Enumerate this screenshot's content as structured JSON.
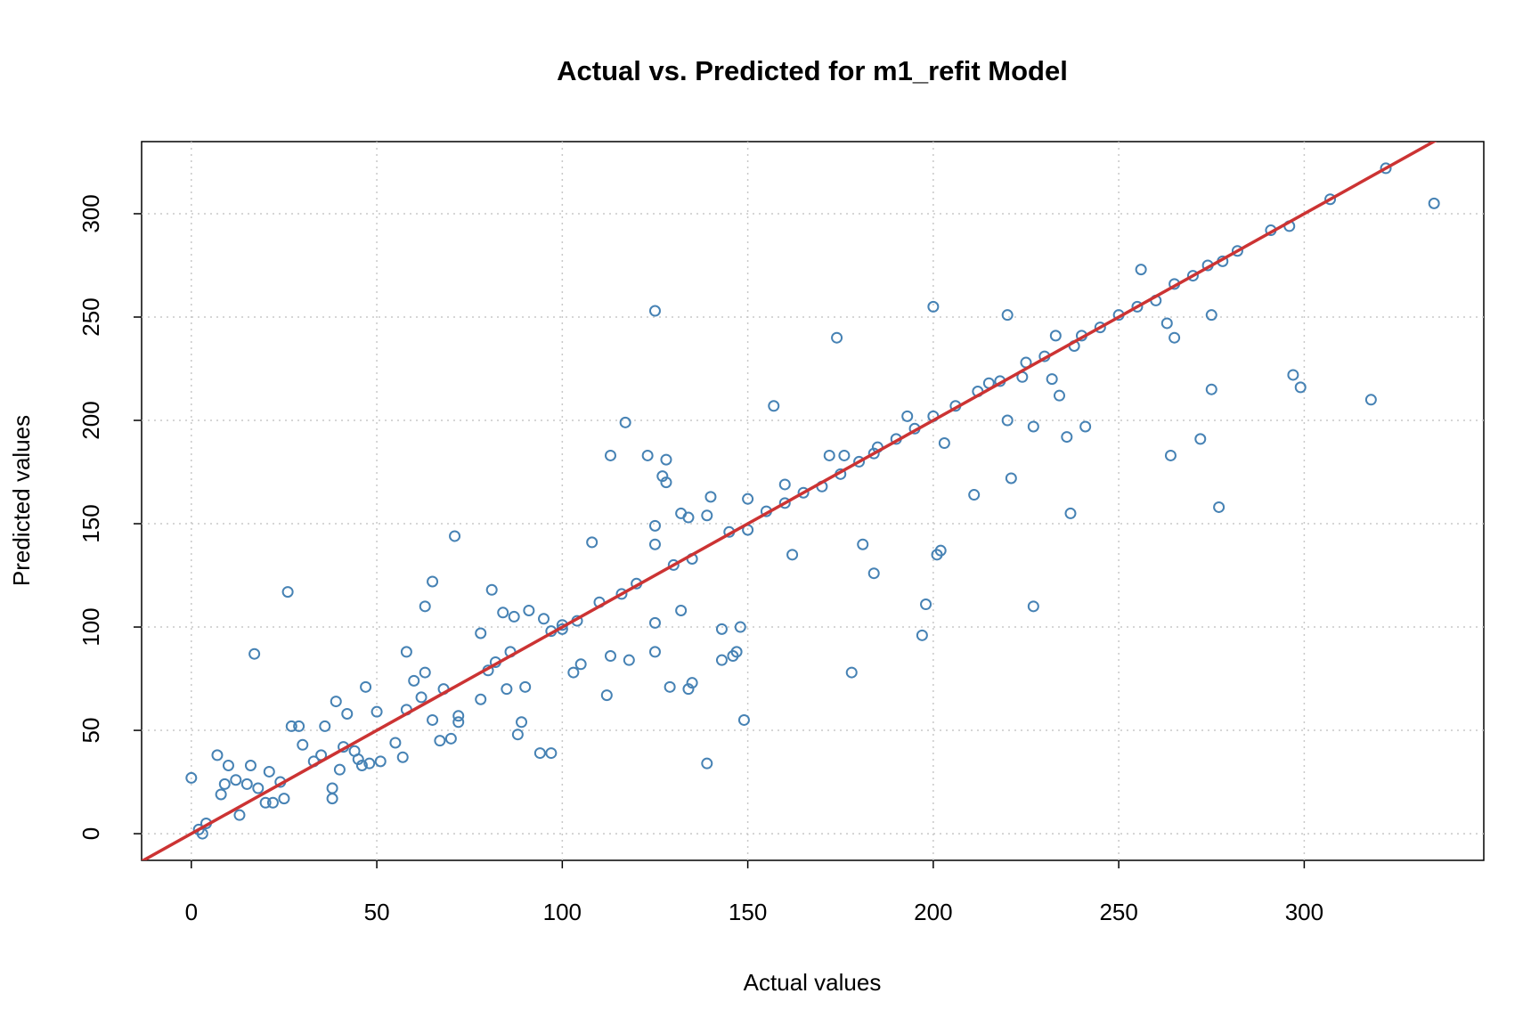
{
  "chart_data": {
    "type": "scatter",
    "title": "Actual vs. Predicted for m1_refit Model",
    "xlabel": "Actual values",
    "ylabel": "Predicted values",
    "x": [
      0,
      17,
      26,
      71,
      65,
      63,
      81,
      117,
      113,
      123,
      128,
      125,
      157,
      174,
      200,
      220,
      256,
      275,
      263,
      265,
      297,
      299,
      275,
      318,
      335,
      322,
      307,
      296,
      291,
      282,
      220,
      221,
      227,
      236,
      241,
      232,
      234,
      211,
      237,
      264,
      272,
      277,
      227,
      198,
      197,
      178,
      184,
      181,
      162,
      201,
      202,
      203,
      149,
      139,
      94,
      97,
      88,
      89,
      112,
      129,
      134,
      135,
      143,
      146,
      147,
      148,
      143,
      132,
      125,
      125,
      118,
      113,
      108,
      125,
      125,
      132,
      134,
      139,
      140,
      127,
      128,
      150,
      160,
      116,
      7,
      21,
      10,
      13,
      3,
      2,
      4,
      38,
      38,
      48,
      51,
      55,
      57,
      58,
      63,
      67,
      70,
      72,
      72,
      68,
      47,
      39,
      29,
      27,
      78,
      78,
      90,
      105,
      103,
      91,
      87,
      84,
      30,
      33,
      35,
      15,
      16,
      12,
      8,
      9,
      20,
      24,
      25,
      22,
      18,
      40,
      44,
      45,
      46,
      50,
      42,
      36,
      41,
      60,
      65,
      62,
      58,
      80,
      82,
      85,
      86,
      97,
      100,
      110,
      120,
      135,
      145,
      155,
      165,
      170,
      175,
      180,
      190,
      195,
      200,
      206,
      212,
      215,
      225,
      230,
      238,
      240,
      245,
      250,
      255,
      260,
      265,
      270,
      274,
      278,
      193,
      172,
      176,
      184,
      95,
      100,
      104,
      130,
      150,
      160,
      185,
      233,
      218,
      224
    ],
    "values": [
      27,
      87,
      117,
      144,
      122,
      110,
      118,
      199,
      183,
      183,
      181,
      253,
      207,
      240,
      255,
      251,
      273,
      251,
      247,
      240,
      222,
      216,
      215,
      210,
      305,
      322,
      307,
      294,
      292,
      282,
      200,
      172,
      197,
      192,
      197,
      220,
      212,
      164,
      155,
      183,
      191,
      158,
      110,
      111,
      96,
      78,
      126,
      140,
      135,
      135,
      137,
      189,
      55,
      34,
      39,
      39,
      48,
      54,
      67,
      71,
      70,
      73,
      84,
      86,
      88,
      100,
      99,
      108,
      102,
      88,
      84,
      86,
      141,
      140,
      149,
      155,
      153,
      154,
      163,
      173,
      170,
      162,
      169,
      116,
      38,
      30,
      33,
      9,
      0,
      2,
      5,
      17,
      22,
      34,
      35,
      44,
      37,
      88,
      78,
      45,
      46,
      54,
      57,
      70,
      71,
      64,
      52,
      52,
      97,
      65,
      71,
      82,
      78,
      108,
      105,
      107,
      43,
      35,
      38,
      24,
      33,
      26,
      19,
      24,
      15,
      25,
      17,
      15,
      22,
      31,
      40,
      36,
      33,
      59,
      58,
      52,
      42,
      74,
      55,
      66,
      60,
      79,
      83,
      70,
      88,
      98,
      101,
      112,
      121,
      133,
      146,
      156,
      165,
      168,
      174,
      180,
      191,
      196,
      202,
      207,
      214,
      218,
      228,
      231,
      236,
      241,
      245,
      251,
      255,
      258,
      266,
      270,
      275,
      277,
      202,
      183,
      183,
      184,
      104,
      99,
      103,
      130,
      147,
      160,
      187,
      241,
      219,
      221
    ],
    "color": "#4682b4",
    "reference_line": {
      "slope": 1,
      "intercept": 0,
      "color": "#cc3333"
    },
    "xlim": [
      -13.4,
      348.4
    ],
    "ylim": [
      -12.9,
      334.9
    ],
    "xticks": [
      0,
      50,
      100,
      150,
      200,
      250,
      300
    ],
    "yticks": [
      0,
      50,
      100,
      150,
      200,
      250,
      300
    ],
    "grid": true
  }
}
